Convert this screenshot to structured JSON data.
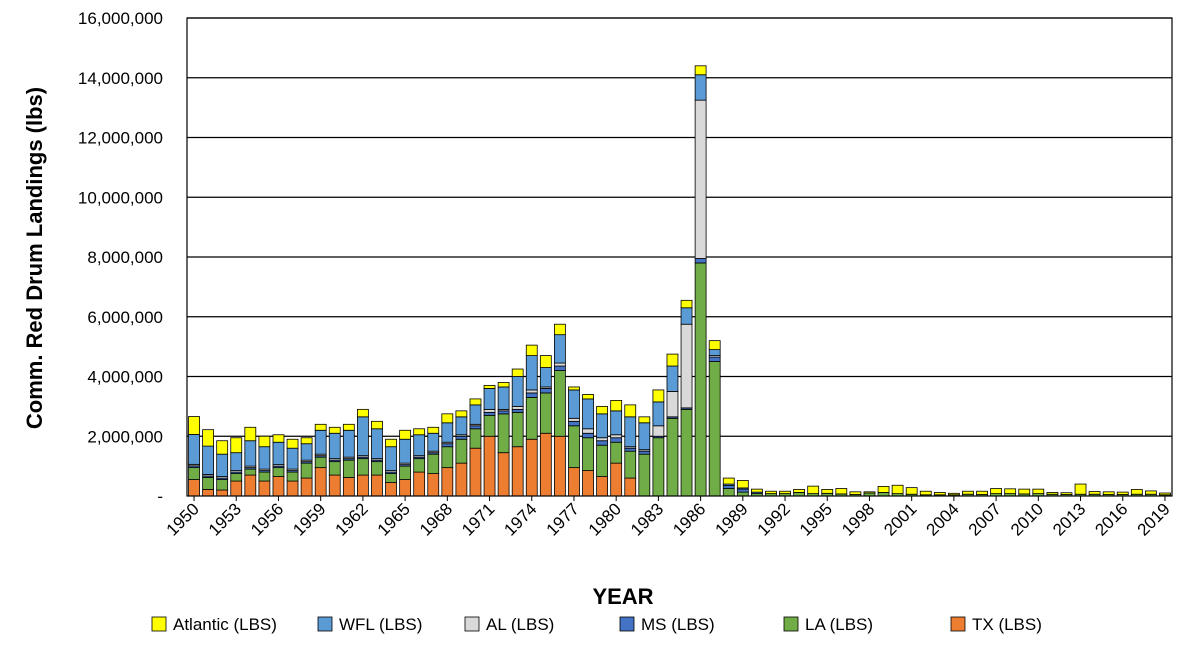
{
  "chart_data": {
    "type": "bar",
    "stacked": true,
    "title": "",
    "xlabel": "YEAR",
    "ylabel": "Comm. Red Drum Landings (lbs)",
    "ylim": [
      0,
      16000000
    ],
    "yticks": [
      0,
      2000000,
      4000000,
      6000000,
      8000000,
      10000000,
      12000000,
      14000000,
      16000000
    ],
    "ytick_labels": [
      "-",
      "2,000,000",
      "4,000,000",
      "6,000,000",
      "8,000,000",
      "10,000,000",
      "12,000,000",
      "14,000,000",
      "16,000,000"
    ],
    "xtick_labels": [
      "1950",
      "1953",
      "1956",
      "1959",
      "1962",
      "1965",
      "1968",
      "1971",
      "1974",
      "1977",
      "1980",
      "1983",
      "1986",
      "1989",
      "1992",
      "1995",
      "1998",
      "2001",
      "2004",
      "2007",
      "2010",
      "2013",
      "2016",
      "2019"
    ],
    "grid": "horizontal",
    "legend_position": "bottom",
    "categories": [
      1950,
      1951,
      1952,
      1953,
      1954,
      1955,
      1956,
      1957,
      1958,
      1959,
      1960,
      1961,
      1962,
      1963,
      1964,
      1965,
      1966,
      1967,
      1968,
      1969,
      1970,
      1971,
      1972,
      1973,
      1974,
      1975,
      1976,
      1977,
      1978,
      1979,
      1980,
      1981,
      1982,
      1983,
      1984,
      1985,
      1986,
      1987,
      1988,
      1989,
      1990,
      1991,
      1992,
      1993,
      1994,
      1995,
      1996,
      1997,
      1998,
      1999,
      2000,
      2001,
      2002,
      2003,
      2004,
      2005,
      2006,
      2007,
      2008,
      2009,
      2010,
      2011,
      2012,
      2013,
      2014,
      2015,
      2016,
      2017,
      2018,
      2019
    ],
    "series": [
      {
        "name": "TX (LBS)",
        "color": "#ED7D31",
        "values": [
          550000,
          220000,
          200000,
          500000,
          700000,
          500000,
          650000,
          500000,
          600000,
          950000,
          700000,
          620000,
          700000,
          700000,
          450000,
          550000,
          800000,
          750000,
          950000,
          1100000,
          1600000,
          2000000,
          1450000,
          1650000,
          1900000,
          2100000,
          2000000,
          950000,
          850000,
          650000,
          1100000,
          600000,
          0,
          0,
          0,
          0,
          0,
          0,
          0,
          0,
          0,
          0,
          0,
          0,
          0,
          0,
          0,
          0,
          0,
          0,
          0,
          0,
          0,
          0,
          0,
          0,
          0,
          0,
          0,
          0,
          0,
          0,
          0,
          0,
          0,
          0,
          0,
          0,
          0,
          0
        ]
      },
      {
        "name": "LA (LBS)",
        "color": "#70AD47",
        "values": [
          400000,
          400000,
          350000,
          250000,
          200000,
          300000,
          300000,
          300000,
          500000,
          350000,
          450000,
          580000,
          550000,
          450000,
          300000,
          450000,
          450000,
          650000,
          700000,
          800000,
          650000,
          700000,
          1300000,
          1150000,
          1400000,
          1350000,
          2200000,
          1400000,
          1100000,
          1050000,
          700000,
          900000,
          1400000,
          1950000,
          2600000,
          2900000,
          7800000,
          4500000,
          250000,
          130000,
          80000,
          80000,
          80000,
          120000,
          80000,
          90000,
          70000,
          50000,
          100000,
          120000,
          80000,
          60000,
          40000,
          40000,
          40000,
          60000,
          50000,
          80000,
          80000,
          70000,
          80000,
          60000,
          50000,
          60000,
          60000,
          50000,
          50000,
          60000,
          60000,
          40000
        ]
      },
      {
        "name": "MS (LBS)",
        "color": "#4472C4",
        "values": [
          60000,
          50000,
          50000,
          50000,
          50000,
          50000,
          50000,
          50000,
          50000,
          50000,
          50000,
          50000,
          50000,
          50000,
          50000,
          50000,
          50000,
          50000,
          100000,
          100000,
          100000,
          100000,
          100000,
          100000,
          150000,
          150000,
          150000,
          150000,
          150000,
          150000,
          150000,
          100000,
          100000,
          50000,
          50000,
          50000,
          150000,
          150000,
          100000,
          100000,
          50000,
          0,
          0,
          0,
          0,
          0,
          0,
          0,
          0,
          0,
          0,
          0,
          0,
          0,
          0,
          0,
          0,
          0,
          0,
          0,
          0,
          0,
          0,
          0,
          0,
          0,
          0,
          0,
          0,
          0
        ]
      },
      {
        "name": "AL (LBS)",
        "color": "#D9D9D9",
        "values": [
          50000,
          50000,
          50000,
          50000,
          50000,
          50000,
          50000,
          50000,
          50000,
          50000,
          50000,
          50000,
          50000,
          50000,
          50000,
          50000,
          50000,
          50000,
          50000,
          50000,
          50000,
          100000,
          50000,
          100000,
          100000,
          50000,
          100000,
          100000,
          150000,
          100000,
          100000,
          50000,
          50000,
          350000,
          850000,
          2800000,
          5300000,
          50000,
          0,
          0,
          0,
          0,
          0,
          0,
          0,
          0,
          0,
          0,
          0,
          0,
          0,
          0,
          0,
          0,
          0,
          0,
          0,
          0,
          0,
          0,
          0,
          0,
          0,
          0,
          0,
          0,
          0,
          0,
          0,
          0
        ]
      },
      {
        "name": "WFL (LBS)",
        "color": "#5B9BD5",
        "values": [
          1000000,
          950000,
          750000,
          600000,
          850000,
          750000,
          750000,
          700000,
          550000,
          800000,
          850000,
          900000,
          1300000,
          1000000,
          800000,
          800000,
          700000,
          600000,
          650000,
          600000,
          650000,
          700000,
          750000,
          1000000,
          1150000,
          650000,
          950000,
          950000,
          1000000,
          800000,
          800000,
          1000000,
          900000,
          800000,
          850000,
          550000,
          850000,
          200000,
          50000,
          40000,
          0,
          0,
          0,
          0,
          0,
          0,
          0,
          0,
          0,
          0,
          0,
          0,
          0,
          0,
          0,
          0,
          0,
          0,
          0,
          0,
          0,
          0,
          0,
          0,
          0,
          0,
          0,
          0,
          0,
          0
        ]
      },
      {
        "name": "Atlantic (LBS)",
        "color": "#FFFF00",
        "values": [
          600000,
          550000,
          450000,
          500000,
          450000,
          350000,
          250000,
          300000,
          200000,
          200000,
          200000,
          200000,
          250000,
          250000,
          250000,
          300000,
          200000,
          200000,
          300000,
          200000,
          200000,
          100000,
          150000,
          250000,
          350000,
          400000,
          350000,
          100000,
          150000,
          250000,
          350000,
          400000,
          200000,
          400000,
          400000,
          250000,
          300000,
          300000,
          200000,
          250000,
          100000,
          80000,
          80000,
          100000,
          250000,
          130000,
          180000,
          90000,
          40000,
          200000,
          280000,
          220000,
          120000,
          80000,
          50000,
          100000,
          110000,
          170000,
          160000,
          160000,
          150000,
          60000,
          60000,
          340000,
          90000,
          90000,
          80000,
          160000,
          110000,
          60000
        ]
      }
    ]
  }
}
